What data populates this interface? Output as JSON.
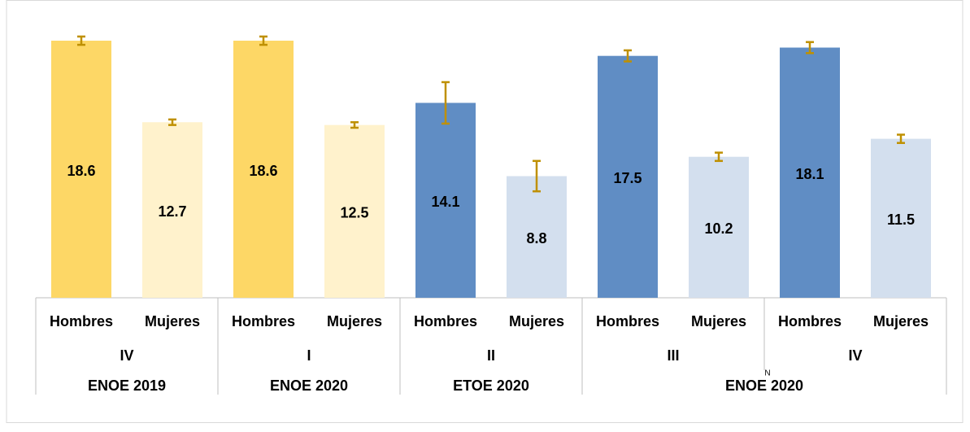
{
  "chart_data": {
    "type": "bar",
    "annotation": "N",
    "surveys": [
      {
        "name": "ENOE 2019",
        "quarters": [
          {
            "name": "IV",
            "bars": [
              {
                "sex": "Hombres",
                "value": 18.6,
                "error": 0.3,
                "color": "#fdd766"
              },
              {
                "sex": "Mujeres",
                "value": 12.7,
                "error": 0.2,
                "color": "#fff2cc"
              }
            ]
          }
        ]
      },
      {
        "name": "ENOE 2020",
        "quarters": [
          {
            "name": "I",
            "bars": [
              {
                "sex": "Hombres",
                "value": 18.6,
                "error": 0.3,
                "color": "#fdd766"
              },
              {
                "sex": "Mujeres",
                "value": 12.5,
                "error": 0.2,
                "color": "#fff2cc"
              }
            ]
          }
        ]
      },
      {
        "name": "ETOE 2020",
        "quarters": [
          {
            "name": "II",
            "bars": [
              {
                "sex": "Hombres",
                "value": 14.1,
                "error": 1.5,
                "color": "#608dc4"
              },
              {
                "sex": "Mujeres",
                "value": 8.8,
                "error": 1.1,
                "color": "#d3dfee"
              }
            ]
          }
        ]
      },
      {
        "name": "ENOE 2020",
        "quarters": [
          {
            "name": "III",
            "bars": [
              {
                "sex": "Hombres",
                "value": 17.5,
                "error": 0.4,
                "color": "#608dc4"
              },
              {
                "sex": "Mujeres",
                "value": 10.2,
                "error": 0.3,
                "color": "#d3dfee"
              }
            ]
          },
          {
            "name": "IV",
            "bars": [
              {
                "sex": "Hombres",
                "value": 18.1,
                "error": 0.4,
                "color": "#608dc4"
              },
              {
                "sex": "Mujeres",
                "value": 11.5,
                "error": 0.3,
                "color": "#d3dfee"
              }
            ]
          }
        ]
      }
    ]
  }
}
